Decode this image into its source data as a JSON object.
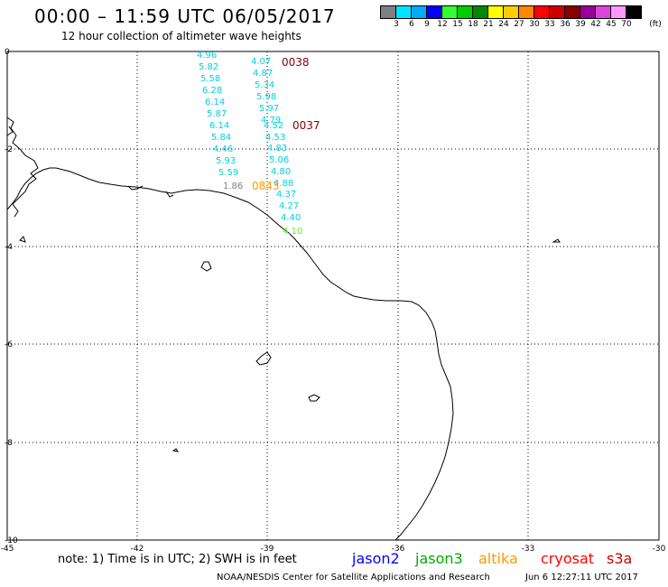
{
  "header": {
    "title": "00:00 – 11:59 UTC 06/05/2017",
    "subtitle": "12 hour collection of altimeter wave heights"
  },
  "legend": {
    "unit": "(ft)",
    "bins": [
      {
        "label": "3",
        "color": "#808080"
      },
      {
        "label": "6",
        "color": "#00e5ff"
      },
      {
        "label": "9",
        "color": "#00aaff"
      },
      {
        "label": "12",
        "color": "#0000ff"
      },
      {
        "label": "15",
        "color": "#33ff33"
      },
      {
        "label": "18",
        "color": "#00cc00"
      },
      {
        "label": "21",
        "color": "#008800"
      },
      {
        "label": "24",
        "color": "#ffff00"
      },
      {
        "label": "27",
        "color": "#ffcc00"
      },
      {
        "label": "30",
        "color": "#ff8800"
      },
      {
        "label": "33",
        "color": "#ff0000"
      },
      {
        "label": "36",
        "color": "#cc0000"
      },
      {
        "label": "39",
        "color": "#880000"
      },
      {
        "label": "42",
        "color": "#990099"
      },
      {
        "label": "45",
        "color": "#dd44dd"
      },
      {
        "label": "70",
        "color": "#ff99ff"
      },
      {
        "label": "",
        "color": "#000000"
      }
    ]
  },
  "axes": {
    "lon_labels": [
      "-45",
      "-42",
      "-39",
      "-36",
      "-33",
      "-30"
    ],
    "lat_labels": [
      "0",
      "-2",
      "-4",
      "-6",
      "-8",
      "-10"
    ]
  },
  "tracks": {
    "left_track": [
      "4.96",
      "5.82",
      "5.58",
      "6.28",
      "6.14",
      "5.87",
      "6.14",
      "5.84",
      "4.46",
      "5.93",
      "5.59"
    ],
    "left_last": "1.86",
    "right_track": [
      "4.07",
      "4.87",
      "5.34",
      "5.98",
      "5.97",
      "4.79",
      "4.52",
      "4.53",
      "4.83",
      "5.06",
      "4.80",
      "4.88",
      "4.37",
      "4.27",
      "4.40"
    ],
    "right_last": "4.10",
    "times": [
      "0038",
      "0037",
      "0843"
    ]
  },
  "colors": {
    "cyan": "#00d0e0",
    "gray": "#808080",
    "green": "#66ee33",
    "darkred": "#880000",
    "orange": "#ff9900"
  },
  "footer": {
    "note": "note: 1) Time is in UTC; 2) SWH is in feet",
    "satellites": [
      {
        "name": "jason2",
        "color": "#0000ff"
      },
      {
        "name": "jason3",
        "color": "#00aa00"
      },
      {
        "name": "altika",
        "color": "#ff9900"
      },
      {
        "name": "cryosat",
        "color": "#ff0000"
      },
      {
        "name": "s3a",
        "color": "#cc0000"
      }
    ],
    "credit": "NOAA/NESDIS Center for Satellite Applications and Research",
    "timestamp": "Jun  6 12:27:11 UTC 2017"
  }
}
